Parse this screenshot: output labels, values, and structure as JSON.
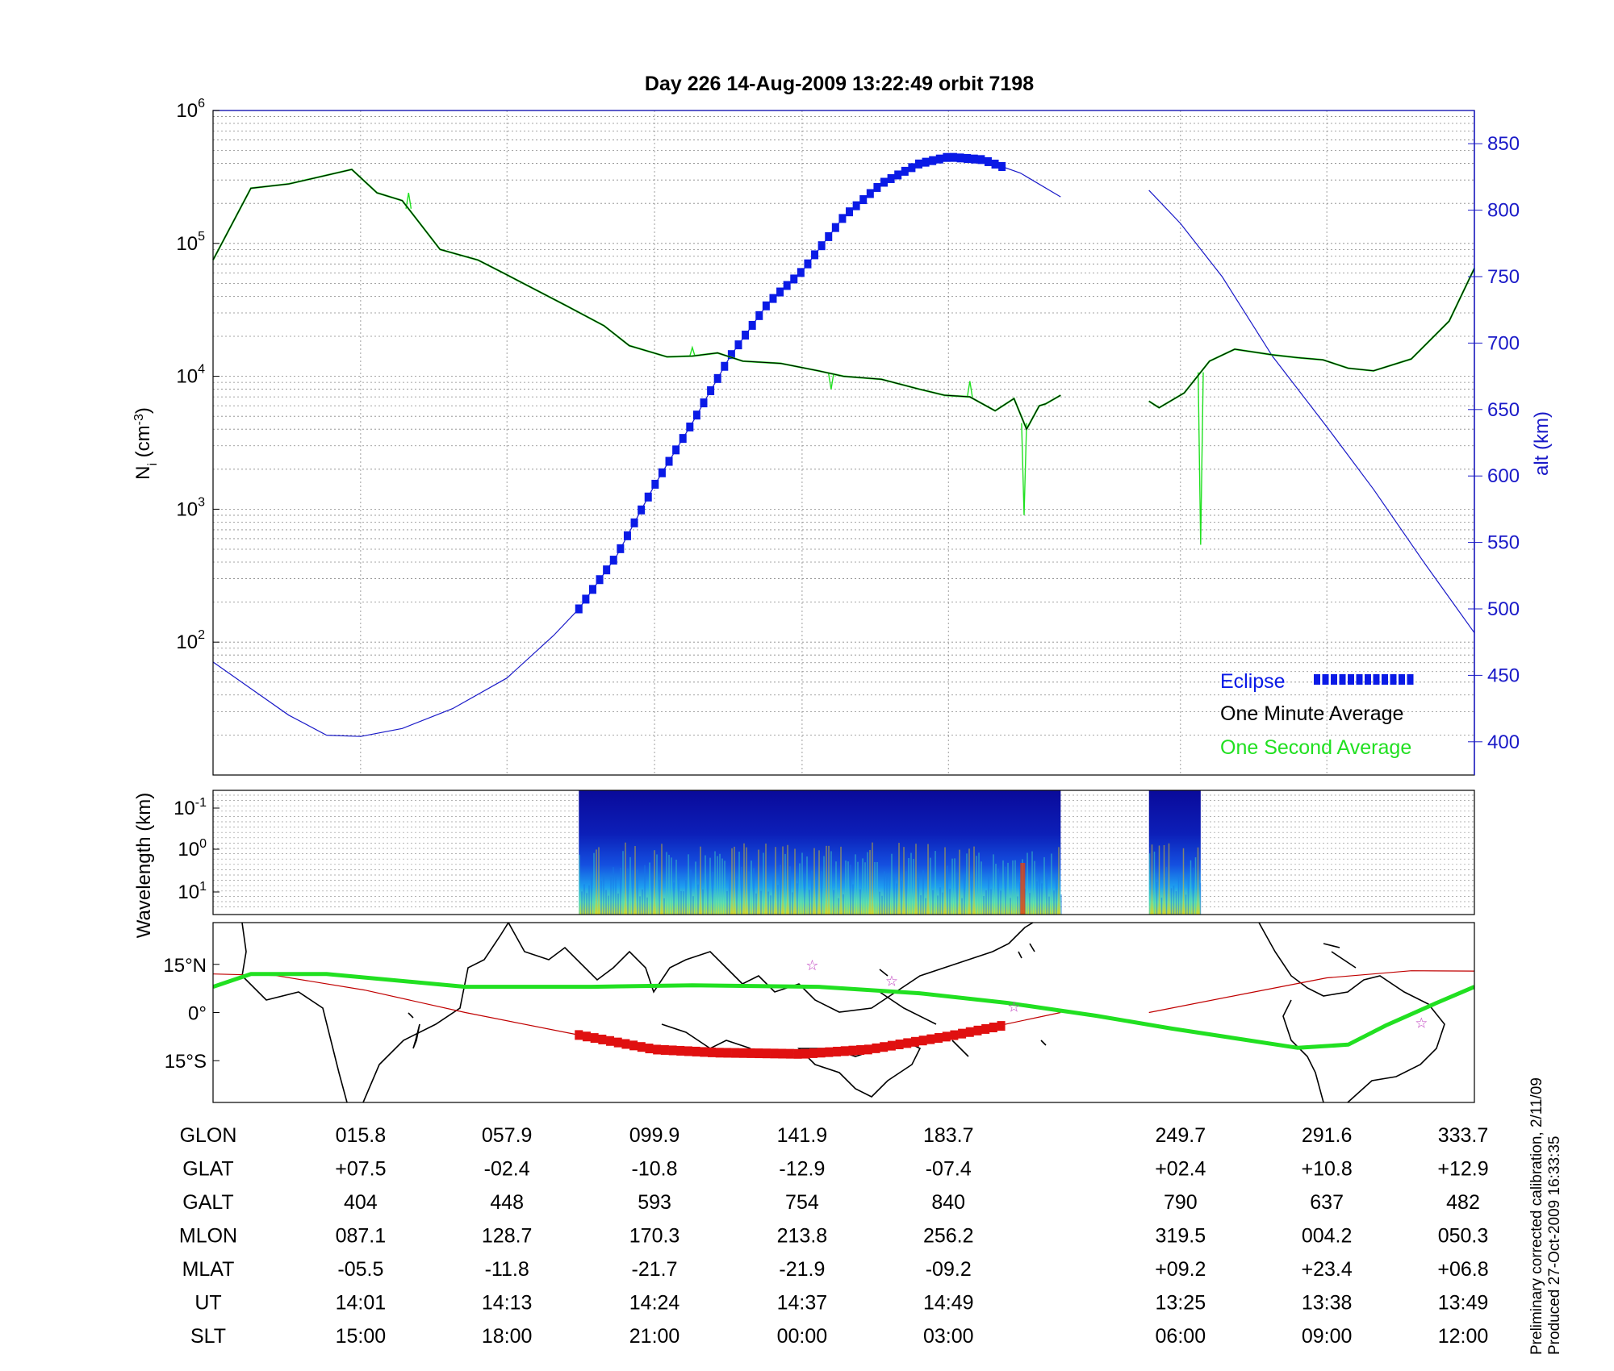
{
  "title": "Day 226  14-Aug-2009 13:22:49   orbit 7198",
  "footer_lines": [
    "Preliminary corrected calibration, 2/11/09",
    "Produced 27-Oct-2009 16:33:35"
  ],
  "colors": {
    "axis": "#000000",
    "alt_axis": "#1a1ac8",
    "eclipse": "#0a1ae6",
    "minute_avg": "#000000",
    "second_avg": "#21e021",
    "orbit_line": "#c00000",
    "map_track": "#21e021",
    "map_eclipse": "#e01010",
    "star": "#c040c0"
  },
  "chart_data": [
    {
      "type": "line",
      "panel": "density",
      "title": "Day 226  14-Aug-2009 13:22:49   orbit 7198",
      "ylabel": "N_i (cm^-3)",
      "yscale": "log",
      "ylim": [
        10,
        1000000
      ],
      "yticks_exp": [
        2,
        3,
        4,
        5,
        6
      ],
      "y2label": "alt (km)",
      "y2lim": [
        375,
        875
      ],
      "y2ticks": [
        400,
        450,
        500,
        550,
        600,
        650,
        700,
        750,
        800,
        850
      ],
      "xlim": [
        0,
        1
      ],
      "x_grid": [
        0.117,
        0.233,
        0.35,
        0.467,
        0.583,
        0.767,
        0.883
      ],
      "legend": {
        "placement": "bottom-right",
        "entries": [
          "Eclipse",
          "One Minute Average",
          "One Second Average"
        ]
      },
      "series": [
        {
          "name": "One Minute Average",
          "axis": "left",
          "points": [
            [
              0,
              75000
            ],
            [
              0.03,
              260000
            ],
            [
              0.06,
              280000
            ],
            [
              0.11,
              360000
            ],
            [
              0.13,
              240000
            ],
            [
              0.15,
              210000
            ],
            [
              0.18,
              90000
            ],
            [
              0.21,
              75000
            ],
            [
              0.23,
              60000
            ],
            [
              0.28,
              34000
            ],
            [
              0.31,
              24000
            ],
            [
              0.33,
              17000
            ],
            [
              0.36,
              14000
            ],
            [
              0.38,
              14200
            ],
            [
              0.4,
              15000
            ],
            [
              0.42,
              13000
            ],
            [
              0.45,
              12500
            ],
            [
              0.48,
              11000
            ],
            [
              0.5,
              10000
            ],
            [
              0.53,
              9500
            ],
            [
              0.56,
              8000
            ],
            [
              0.58,
              7200
            ],
            [
              0.6,
              7000
            ],
            [
              0.62,
              5500
            ],
            [
              0.635,
              6800
            ],
            [
              0.645,
              4000
            ],
            [
              0.655,
              6000
            ],
            [
              0.66,
              6200
            ],
            [
              0.672,
              7200
            ]
          ],
          "break_after_x": 0.672
        },
        {
          "name": "One Minute Average (segment 2)",
          "axis": "left",
          "points": [
            [
              0.742,
              6500
            ],
            [
              0.75,
              5800
            ],
            [
              0.77,
              7500
            ],
            [
              0.79,
              13000
            ],
            [
              0.81,
              16000
            ],
            [
              0.84,
              14500
            ],
            [
              0.86,
              13800
            ],
            [
              0.88,
              13300
            ],
            [
              0.9,
              11500
            ],
            [
              0.92,
              11000
            ],
            [
              0.95,
              13500
            ],
            [
              0.98,
              26000
            ],
            [
              1.0,
              65000
            ]
          ]
        },
        {
          "name": "One Second Average",
          "axis": "left",
          "spikes": [
            [
              0.643,
              900
            ],
            [
              0.783,
              540
            ],
            [
              0.155,
              240000
            ],
            [
              0.38,
              16500
            ],
            [
              0.49,
              8000
            ],
            [
              0.6,
              9200
            ]
          ]
        },
        {
          "name": "Altitude",
          "axis": "right",
          "points": [
            [
              0,
              460
            ],
            [
              0.03,
              440
            ],
            [
              0.06,
              420
            ],
            [
              0.09,
              405
            ],
            [
              0.117,
              404
            ],
            [
              0.15,
              410
            ],
            [
              0.19,
              425
            ],
            [
              0.233,
              448
            ],
            [
              0.27,
              480
            ],
            [
              0.29,
              500
            ],
            [
              0.32,
              540
            ],
            [
              0.35,
              593
            ],
            [
              0.38,
              640
            ],
            [
              0.41,
              690
            ],
            [
              0.44,
              730
            ],
            [
              0.467,
              754
            ],
            [
              0.5,
              795
            ],
            [
              0.53,
              820
            ],
            [
              0.56,
              835
            ],
            [
              0.583,
              840
            ],
            [
              0.61,
              838
            ],
            [
              0.64,
              828
            ],
            [
              0.672,
              810
            ]
          ],
          "points2": [
            [
              0.742,
              815
            ],
            [
              0.767,
              790
            ],
            [
              0.8,
              750
            ],
            [
              0.84,
              690
            ],
            [
              0.883,
              637
            ],
            [
              0.92,
              590
            ],
            [
              0.96,
              535
            ],
            [
              1.0,
              482
            ]
          ]
        },
        {
          "name": "Eclipse",
          "axis": "right",
          "x_range": [
            0.29,
            0.627
          ]
        }
      ]
    },
    {
      "type": "heatmap",
      "panel": "spectrogram",
      "ylabel": "Wavelength (km)",
      "ytick_exps": [
        "-1",
        "0",
        "1"
      ],
      "yscale": "log",
      "segments": [
        [
          0.29,
          0.672
        ],
        [
          0.742,
          0.783
        ]
      ]
    },
    {
      "type": "map",
      "panel": "ground-track",
      "yticks": [
        "15°N",
        "0°",
        "15°S"
      ],
      "lat_range": [
        -28,
        28
      ],
      "stars": [
        [
          0.475,
          15
        ],
        [
          0.538,
          10
        ],
        [
          0.635,
          2
        ],
        [
          0.958,
          -3
        ]
      ],
      "track_points": [
        [
          0,
          8
        ],
        [
          0.03,
          12
        ],
        [
          0.09,
          12
        ],
        [
          0.2,
          8
        ],
        [
          0.3,
          8
        ],
        [
          0.38,
          8.5
        ],
        [
          0.48,
          8
        ],
        [
          0.56,
          6
        ],
        [
          0.63,
          3
        ],
        [
          0.7,
          -1
        ],
        [
          0.76,
          -5
        ],
        [
          0.86,
          -11
        ],
        [
          0.9,
          -10
        ],
        [
          0.93,
          -4
        ],
        [
          0.97,
          3
        ],
        [
          1.0,
          8
        ]
      ],
      "eclipse_track": [
        [
          0.29,
          -7
        ],
        [
          0.35,
          -11.5
        ],
        [
          0.4,
          -12.5
        ],
        [
          0.467,
          -12.9
        ],
        [
          0.52,
          -11.5
        ],
        [
          0.583,
          -7.4
        ],
        [
          0.627,
          -4
        ]
      ],
      "orbit_line": [
        [
          0,
          12
        ],
        [
          0.05,
          11.5
        ],
        [
          0.12,
          7
        ],
        [
          0.2,
          0
        ],
        [
          0.29,
          -7
        ],
        [
          0.35,
          -11
        ],
        [
          0.467,
          -12.9
        ],
        [
          0.583,
          -7.4
        ],
        [
          0.672,
          0
        ]
      ],
      "orbit_line2": [
        [
          0.742,
          0
        ],
        [
          0.82,
          6
        ],
        [
          0.883,
          10.8
        ],
        [
          0.95,
          13
        ],
        [
          1.0,
          12.9
        ]
      ]
    },
    {
      "type": "table",
      "panel": "ephemeris",
      "row_labels": [
        "GLON",
        "GLAT",
        "GALT",
        "MLON",
        "MLAT",
        "UT",
        "SLT"
      ],
      "column_x": [
        0.117,
        0.233,
        0.35,
        0.467,
        0.583,
        0.767,
        0.883,
        1.0
      ],
      "columns": [
        [
          "015.8",
          "+07.5",
          "404",
          "087.1",
          "-05.5",
          "14:01",
          "15:00"
        ],
        [
          "057.9",
          "-02.4",
          "448",
          "128.7",
          "-11.8",
          "14:13",
          "18:00"
        ],
        [
          "099.9",
          "-10.8",
          "593",
          "170.3",
          "-21.7",
          "14:24",
          "21:00"
        ],
        [
          "141.9",
          "-12.9",
          "754",
          "213.8",
          "-21.9",
          "14:37",
          "00:00"
        ],
        [
          "183.7",
          "-07.4",
          "840",
          "256.2",
          "-09.2",
          "14:49",
          "03:00"
        ],
        [
          "249.7",
          "+02.4",
          "790",
          "319.5",
          "+09.2",
          "13:25",
          "06:00"
        ],
        [
          "291.6",
          "+10.8",
          "637",
          "004.2",
          "+23.4",
          "13:38",
          "09:00"
        ],
        [
          "333.7",
          "+12.9",
          "482",
          "050.3",
          "+06.8",
          "13:49",
          "12:00"
        ]
      ]
    }
  ]
}
